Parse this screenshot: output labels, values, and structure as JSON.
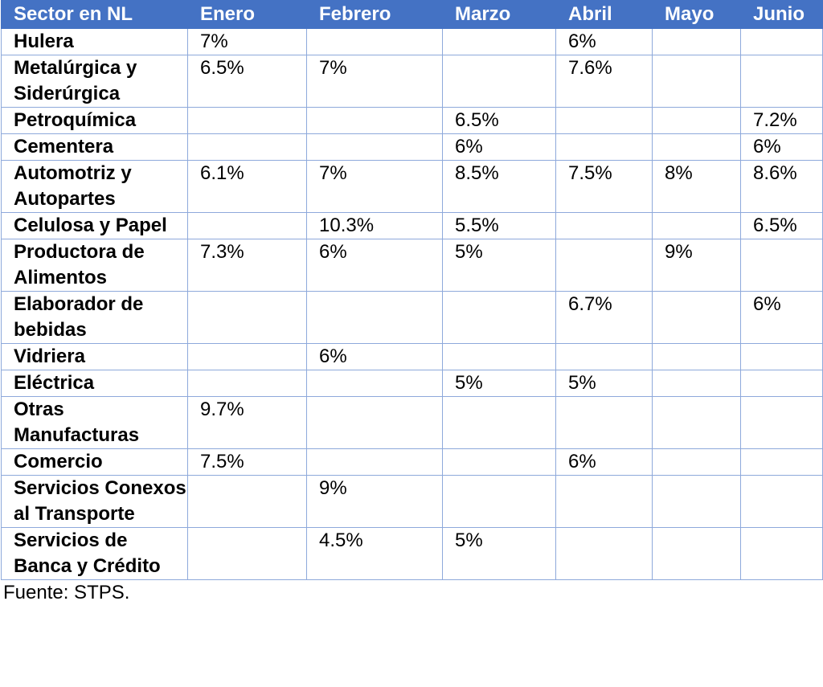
{
  "table": {
    "headers": [
      "Sector en NL",
      "Enero",
      "Febrero",
      "Marzo",
      "Abril",
      "Mayo",
      "Junio"
    ],
    "rows": [
      {
        "sector": "Hulera",
        "values": [
          "7%",
          "",
          "",
          "6%",
          "",
          ""
        ]
      },
      {
        "sector": "Metalúrgica y Siderúrgica",
        "values": [
          "6.5%",
          "7%",
          "",
          "7.6%",
          "",
          ""
        ]
      },
      {
        "sector": "Petroquímica",
        "values": [
          "",
          "",
          "6.5%",
          "",
          "",
          "7.2%"
        ]
      },
      {
        "sector": "Cementera",
        "values": [
          "",
          "",
          "6%",
          "",
          "",
          "6%"
        ]
      },
      {
        "sector": "Automotriz y Autopartes",
        "values": [
          "6.1%",
          "7%",
          "8.5%",
          "7.5%",
          "8%",
          "8.6%"
        ]
      },
      {
        "sector": "Celulosa y Papel",
        "values": [
          "",
          "10.3%",
          "5.5%",
          "",
          "",
          "6.5%"
        ]
      },
      {
        "sector": "Productora de Alimentos",
        "values": [
          "7.3%",
          "6%",
          "5%",
          "",
          "9%",
          ""
        ]
      },
      {
        "sector": "Elaborador de bebidas",
        "values": [
          "",
          "",
          "",
          "6.7%",
          "",
          "6%"
        ]
      },
      {
        "sector": "Vidriera",
        "values": [
          "",
          "6%",
          "",
          "",
          "",
          ""
        ]
      },
      {
        "sector": "Eléctrica",
        "values": [
          "",
          "",
          "5%",
          "5%",
          "",
          ""
        ]
      },
      {
        "sector": "Otras Manufacturas",
        "values": [
          "9.7%",
          "",
          "",
          "",
          "",
          ""
        ]
      },
      {
        "sector": "Comercio",
        "values": [
          "7.5%",
          "",
          "",
          "6%",
          "",
          ""
        ]
      },
      {
        "sector": "Servicios Conexos al Transporte",
        "values": [
          "",
          "9%",
          "",
          "",
          "",
          ""
        ]
      },
      {
        "sector": "Servicios de Banca y Crédito",
        "values": [
          "",
          "4.5%",
          "5%",
          "",
          "",
          ""
        ]
      }
    ]
  },
  "source_note": "Fuente: STPS.",
  "colors": {
    "header_bg": "#4472c4",
    "header_text": "#ffffff",
    "border": "#8ea9db"
  }
}
